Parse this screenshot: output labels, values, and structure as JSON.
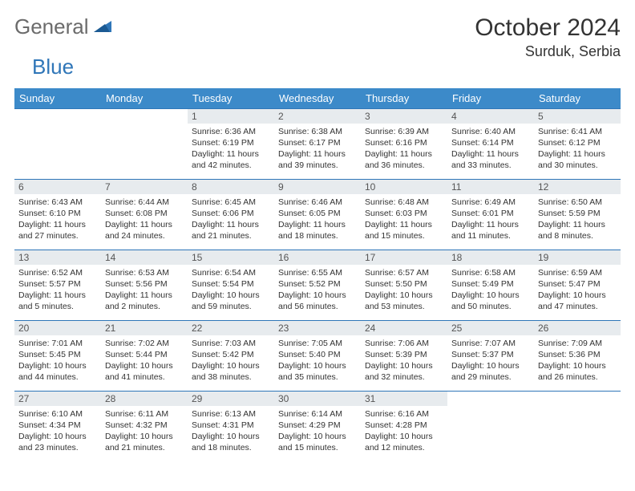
{
  "logo": {
    "word1": "General",
    "word2": "Blue",
    "sail_color": "#2f76b8"
  },
  "title": {
    "month": "October 2024",
    "location": "Surduk, Serbia"
  },
  "calendar": {
    "header_bg": "#3c8ac9",
    "header_fg": "#ffffff",
    "rule_color": "#2f76b8",
    "daynum_bg": "#e7ebee",
    "day_names": [
      "Sunday",
      "Monday",
      "Tuesday",
      "Wednesday",
      "Thursday",
      "Friday",
      "Saturday"
    ],
    "weeks": [
      [
        null,
        null,
        {
          "n": "1",
          "sunrise": "6:36 AM",
          "sunset": "6:19 PM",
          "daylight": "11 hours and 42 minutes."
        },
        {
          "n": "2",
          "sunrise": "6:38 AM",
          "sunset": "6:17 PM",
          "daylight": "11 hours and 39 minutes."
        },
        {
          "n": "3",
          "sunrise": "6:39 AM",
          "sunset": "6:16 PM",
          "daylight": "11 hours and 36 minutes."
        },
        {
          "n": "4",
          "sunrise": "6:40 AM",
          "sunset": "6:14 PM",
          "daylight": "11 hours and 33 minutes."
        },
        {
          "n": "5",
          "sunrise": "6:41 AM",
          "sunset": "6:12 PM",
          "daylight": "11 hours and 30 minutes."
        }
      ],
      [
        {
          "n": "6",
          "sunrise": "6:43 AM",
          "sunset": "6:10 PM",
          "daylight": "11 hours and 27 minutes."
        },
        {
          "n": "7",
          "sunrise": "6:44 AM",
          "sunset": "6:08 PM",
          "daylight": "11 hours and 24 minutes."
        },
        {
          "n": "8",
          "sunrise": "6:45 AM",
          "sunset": "6:06 PM",
          "daylight": "11 hours and 21 minutes."
        },
        {
          "n": "9",
          "sunrise": "6:46 AM",
          "sunset": "6:05 PM",
          "daylight": "11 hours and 18 minutes."
        },
        {
          "n": "10",
          "sunrise": "6:48 AM",
          "sunset": "6:03 PM",
          "daylight": "11 hours and 15 minutes."
        },
        {
          "n": "11",
          "sunrise": "6:49 AM",
          "sunset": "6:01 PM",
          "daylight": "11 hours and 11 minutes."
        },
        {
          "n": "12",
          "sunrise": "6:50 AM",
          "sunset": "5:59 PM",
          "daylight": "11 hours and 8 minutes."
        }
      ],
      [
        {
          "n": "13",
          "sunrise": "6:52 AM",
          "sunset": "5:57 PM",
          "daylight": "11 hours and 5 minutes."
        },
        {
          "n": "14",
          "sunrise": "6:53 AM",
          "sunset": "5:56 PM",
          "daylight": "11 hours and 2 minutes."
        },
        {
          "n": "15",
          "sunrise": "6:54 AM",
          "sunset": "5:54 PM",
          "daylight": "10 hours and 59 minutes."
        },
        {
          "n": "16",
          "sunrise": "6:55 AM",
          "sunset": "5:52 PM",
          "daylight": "10 hours and 56 minutes."
        },
        {
          "n": "17",
          "sunrise": "6:57 AM",
          "sunset": "5:50 PM",
          "daylight": "10 hours and 53 minutes."
        },
        {
          "n": "18",
          "sunrise": "6:58 AM",
          "sunset": "5:49 PM",
          "daylight": "10 hours and 50 minutes."
        },
        {
          "n": "19",
          "sunrise": "6:59 AM",
          "sunset": "5:47 PM",
          "daylight": "10 hours and 47 minutes."
        }
      ],
      [
        {
          "n": "20",
          "sunrise": "7:01 AM",
          "sunset": "5:45 PM",
          "daylight": "10 hours and 44 minutes."
        },
        {
          "n": "21",
          "sunrise": "7:02 AM",
          "sunset": "5:44 PM",
          "daylight": "10 hours and 41 minutes."
        },
        {
          "n": "22",
          "sunrise": "7:03 AM",
          "sunset": "5:42 PM",
          "daylight": "10 hours and 38 minutes."
        },
        {
          "n": "23",
          "sunrise": "7:05 AM",
          "sunset": "5:40 PM",
          "daylight": "10 hours and 35 minutes."
        },
        {
          "n": "24",
          "sunrise": "7:06 AM",
          "sunset": "5:39 PM",
          "daylight": "10 hours and 32 minutes."
        },
        {
          "n": "25",
          "sunrise": "7:07 AM",
          "sunset": "5:37 PM",
          "daylight": "10 hours and 29 minutes."
        },
        {
          "n": "26",
          "sunrise": "7:09 AM",
          "sunset": "5:36 PM",
          "daylight": "10 hours and 26 minutes."
        }
      ],
      [
        {
          "n": "27",
          "sunrise": "6:10 AM",
          "sunset": "4:34 PM",
          "daylight": "10 hours and 23 minutes."
        },
        {
          "n": "28",
          "sunrise": "6:11 AM",
          "sunset": "4:32 PM",
          "daylight": "10 hours and 21 minutes."
        },
        {
          "n": "29",
          "sunrise": "6:13 AM",
          "sunset": "4:31 PM",
          "daylight": "10 hours and 18 minutes."
        },
        {
          "n": "30",
          "sunrise": "6:14 AM",
          "sunset": "4:29 PM",
          "daylight": "10 hours and 15 minutes."
        },
        {
          "n": "31",
          "sunrise": "6:16 AM",
          "sunset": "4:28 PM",
          "daylight": "10 hours and 12 minutes."
        },
        null,
        null
      ]
    ]
  }
}
